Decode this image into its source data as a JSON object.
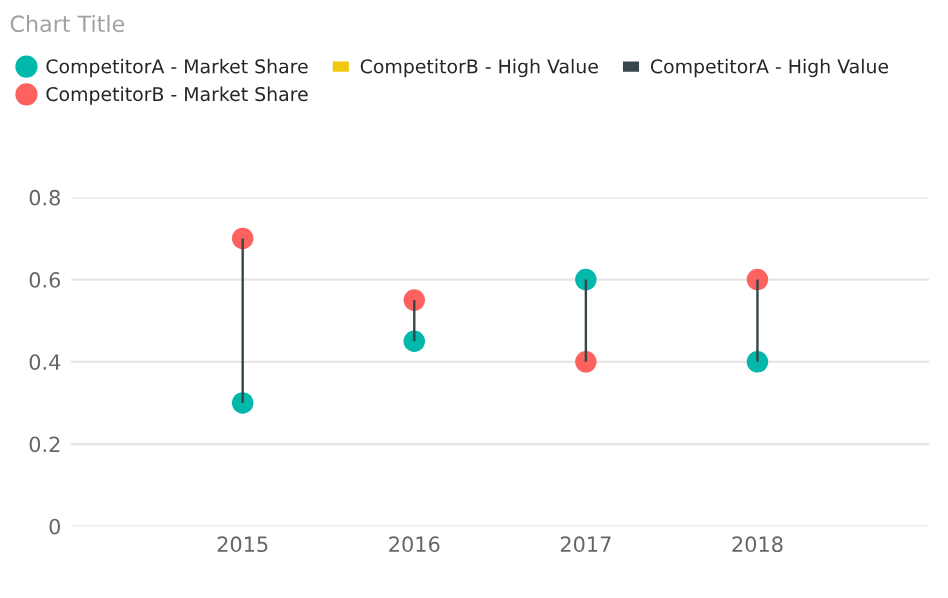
{
  "chart_data": {
    "type": "scatter",
    "title": "Chart Title",
    "categories": [
      "2015",
      "2016",
      "2017",
      "2018"
    ],
    "series": [
      {
        "name": "CompetitorA - Market Share",
        "color": "#01b8aa",
        "values": [
          0.3,
          0.45,
          0.6,
          0.4
        ]
      },
      {
        "name": "CompetitorB - Market Share",
        "color": "#fd625e",
        "values": [
          0.7,
          0.55,
          0.4,
          0.6
        ]
      },
      {
        "name": "CompetitorB - High Value",
        "type": "bar",
        "color": "#f2c80f",
        "values": [
          null,
          null,
          null,
          null
        ]
      },
      {
        "name": "CompetitorA - High Value",
        "type": "bar",
        "color": "#374649",
        "base": [
          0.3,
          0.45,
          0.4,
          0.4
        ],
        "values": [
          0.4,
          0.1,
          0.2,
          0.2
        ]
      }
    ],
    "ylim": [
      0,
      0.8
    ],
    "yticks": [
      0,
      0.2,
      0.4,
      0.6,
      0.8
    ],
    "grid": "y",
    "legend": "top left",
    "marker": "circle"
  }
}
